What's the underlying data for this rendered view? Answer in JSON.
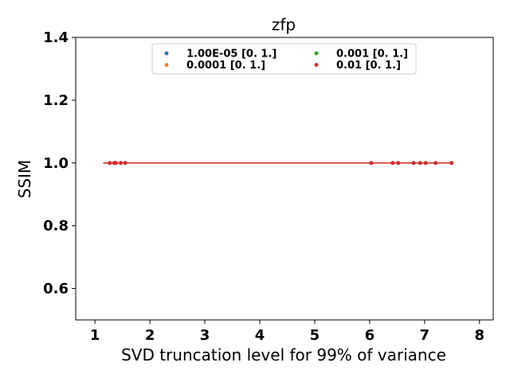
{
  "chart_data": {
    "type": "scatter",
    "title": "zfp",
    "xlabel": "SVD truncation level for 99% of variance",
    "ylabel": "SSIM",
    "xlim": [
      0.65,
      8.25
    ],
    "ylim": [
      0.5,
      1.4
    ],
    "xticks": [
      "1",
      "2",
      "3",
      "4",
      "5",
      "6",
      "7",
      "8"
    ],
    "yticks": [
      "0.6",
      "0.8",
      "1.0",
      "1.2",
      "1.4"
    ],
    "grid": false,
    "legend": {
      "placement": "top-center",
      "columns": 2
    },
    "fit_line": {
      "x": [
        1.15,
        7.5
      ],
      "y": [
        1.0,
        1.0
      ],
      "color": "#d62728"
    },
    "series": [
      {
        "name": "1.00E-05 [0. 1.]",
        "color": "#1f77b4",
        "x": [
          1.27,
          1.35,
          1.38,
          1.47,
          1.55,
          6.03,
          6.42,
          6.52,
          6.8,
          6.92,
          7.02,
          7.2,
          7.49
        ],
        "y": [
          1,
          1,
          1,
          1,
          1,
          1,
          1,
          1,
          1,
          1,
          1,
          1,
          1
        ]
      },
      {
        "name": "0.0001 [0. 1.]",
        "color": "#ff7f0e",
        "x": [
          1.27,
          1.35,
          1.38,
          1.47,
          1.55,
          6.03,
          6.42,
          6.52,
          6.8,
          6.92,
          7.02,
          7.2,
          7.49
        ],
        "y": [
          1,
          1,
          1,
          1,
          1,
          1,
          1,
          1,
          1,
          1,
          1,
          1,
          1
        ]
      },
      {
        "name": "0.001 [0. 1.]",
        "color": "#2ca02c",
        "x": [
          1.27,
          1.35,
          1.38,
          1.47,
          1.55,
          6.03,
          6.42,
          6.52,
          6.8,
          6.92,
          7.02,
          7.2,
          7.49
        ],
        "y": [
          1,
          1,
          1,
          1,
          1,
          1,
          1,
          1,
          1,
          1,
          1,
          1,
          1
        ]
      },
      {
        "name": "0.01 [0. 1.]",
        "color": "#d62728",
        "x": [
          1.27,
          1.35,
          1.38,
          1.47,
          1.55,
          6.03,
          6.42,
          6.52,
          6.8,
          6.92,
          7.02,
          7.2,
          7.49
        ],
        "y": [
          1,
          1,
          1,
          1,
          1,
          1,
          1,
          1,
          1,
          1,
          1,
          1,
          1
        ]
      }
    ]
  }
}
